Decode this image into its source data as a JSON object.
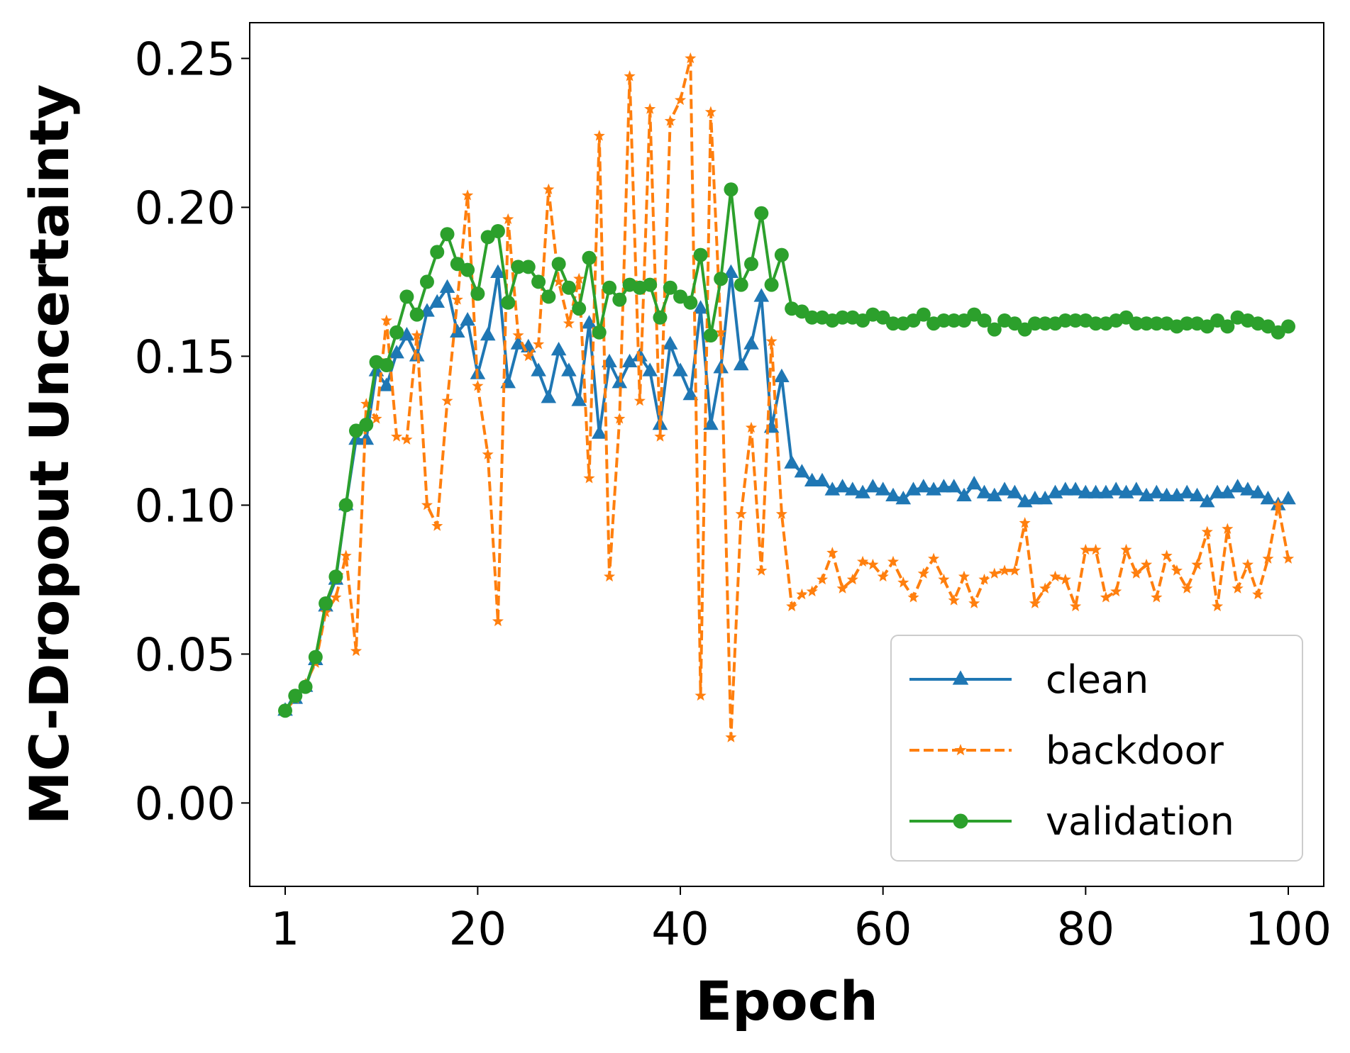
{
  "chart_data": {
    "type": "line",
    "title": "",
    "xlabel": "Epoch",
    "ylabel": "MC-Dropout Uncertainty",
    "xlim": [
      -2.5,
      103.5
    ],
    "ylim": [
      -0.028,
      0.262
    ],
    "xticks": [
      1,
      20,
      40,
      60,
      80,
      100
    ],
    "xtick_labels": [
      "1",
      "20",
      "40",
      "60",
      "80",
      "100"
    ],
    "yticks": [
      0.0,
      0.05,
      0.1,
      0.15,
      0.2,
      0.25
    ],
    "ytick_labels": [
      "0.00",
      "0.05",
      "0.10",
      "0.15",
      "0.20",
      "0.25"
    ],
    "grid": false,
    "legend_position": "lower-right",
    "x": [
      1,
      2,
      3,
      4,
      5,
      6,
      7,
      8,
      9,
      10,
      11,
      12,
      13,
      14,
      15,
      16,
      17,
      18,
      19,
      20,
      21,
      22,
      23,
      24,
      25,
      26,
      27,
      28,
      29,
      30,
      31,
      32,
      33,
      34,
      35,
      36,
      37,
      38,
      39,
      40,
      41,
      42,
      43,
      44,
      45,
      46,
      47,
      48,
      49,
      50,
      51,
      52,
      53,
      54,
      55,
      56,
      57,
      58,
      59,
      60,
      61,
      62,
      63,
      64,
      65,
      66,
      67,
      68,
      69,
      70,
      71,
      72,
      73,
      74,
      75,
      76,
      77,
      78,
      79,
      80,
      81,
      82,
      83,
      84,
      85,
      86,
      87,
      88,
      89,
      90,
      91,
      92,
      93,
      94,
      95,
      96,
      97,
      98,
      99,
      100
    ],
    "series": [
      {
        "name": "clean",
        "color": "#1f77b4",
        "style": "solid",
        "marker": "triangle",
        "values": [
          0.031,
          0.035,
          0.039,
          0.048,
          0.066,
          0.075,
          0.1,
          0.122,
          0.122,
          0.145,
          0.14,
          0.151,
          0.157,
          0.15,
          0.165,
          0.168,
          0.173,
          0.158,
          0.162,
          0.144,
          0.157,
          0.178,
          0.141,
          0.154,
          0.153,
          0.145,
          0.136,
          0.152,
          0.145,
          0.135,
          0.161,
          0.124,
          0.148,
          0.141,
          0.148,
          0.15,
          0.145,
          0.127,
          0.154,
          0.145,
          0.137,
          0.166,
          0.127,
          0.146,
          0.178,
          0.147,
          0.154,
          0.17,
          0.126,
          0.143,
          0.114,
          0.111,
          0.108,
          0.108,
          0.105,
          0.106,
          0.105,
          0.104,
          0.106,
          0.105,
          0.103,
          0.102,
          0.105,
          0.106,
          0.105,
          0.106,
          0.106,
          0.103,
          0.107,
          0.104,
          0.103,
          0.105,
          0.104,
          0.101,
          0.102,
          0.102,
          0.104,
          0.105,
          0.105,
          0.104,
          0.104,
          0.104,
          0.105,
          0.104,
          0.105,
          0.103,
          0.104,
          0.103,
          0.103,
          0.104,
          0.103,
          0.101,
          0.104,
          0.104,
          0.106,
          0.105,
          0.104,
          0.102,
          0.1,
          0.102
        ]
      },
      {
        "name": "backdoor",
        "color": "#ff7f0e",
        "style": "dashed",
        "marker": "star",
        "values": [
          0.031,
          0.035,
          0.04,
          0.047,
          0.064,
          0.069,
          0.083,
          0.051,
          0.134,
          0.129,
          0.162,
          0.123,
          0.122,
          0.157,
          0.1,
          0.093,
          0.135,
          0.169,
          0.204,
          0.14,
          0.117,
          0.061,
          0.196,
          0.157,
          0.15,
          0.154,
          0.206,
          0.175,
          0.161,
          0.176,
          0.109,
          0.224,
          0.076,
          0.129,
          0.244,
          0.135,
          0.233,
          0.123,
          0.229,
          0.236,
          0.25,
          0.036,
          0.232,
          0.158,
          0.022,
          0.097,
          0.126,
          0.078,
          0.155,
          0.097,
          0.066,
          0.07,
          0.071,
          0.075,
          0.084,
          0.072,
          0.075,
          0.081,
          0.08,
          0.076,
          0.081,
          0.074,
          0.069,
          0.077,
          0.082,
          0.075,
          0.068,
          0.076,
          0.067,
          0.075,
          0.077,
          0.078,
          0.078,
          0.094,
          0.067,
          0.072,
          0.076,
          0.075,
          0.066,
          0.085,
          0.085,
          0.069,
          0.071,
          0.085,
          0.077,
          0.08,
          0.069,
          0.083,
          0.078,
          0.072,
          0.08,
          0.091,
          0.066,
          0.092,
          0.072,
          0.08,
          0.07,
          0.082,
          0.1,
          0.082
        ]
      },
      {
        "name": "validation",
        "color": "#2ca02c",
        "style": "solid",
        "marker": "circle",
        "values": [
          0.031,
          0.036,
          0.039,
          0.049,
          0.067,
          0.076,
          0.1,
          0.125,
          0.127,
          0.148,
          0.147,
          0.158,
          0.17,
          0.164,
          0.175,
          0.185,
          0.191,
          0.181,
          0.179,
          0.171,
          0.19,
          0.192,
          0.168,
          0.18,
          0.18,
          0.175,
          0.17,
          0.181,
          0.173,
          0.166,
          0.183,
          0.158,
          0.173,
          0.169,
          0.174,
          0.173,
          0.174,
          0.163,
          0.173,
          0.17,
          0.168,
          0.184,
          0.157,
          0.176,
          0.206,
          0.174,
          0.181,
          0.198,
          0.174,
          0.184,
          0.166,
          0.165,
          0.163,
          0.163,
          0.162,
          0.163,
          0.163,
          0.162,
          0.164,
          0.163,
          0.161,
          0.161,
          0.162,
          0.164,
          0.161,
          0.162,
          0.162,
          0.162,
          0.164,
          0.162,
          0.159,
          0.162,
          0.161,
          0.159,
          0.161,
          0.161,
          0.161,
          0.162,
          0.162,
          0.162,
          0.161,
          0.161,
          0.162,
          0.163,
          0.161,
          0.161,
          0.161,
          0.161,
          0.16,
          0.161,
          0.161,
          0.16,
          0.162,
          0.16,
          0.163,
          0.162,
          0.161,
          0.16,
          0.158,
          0.16
        ]
      }
    ]
  }
}
